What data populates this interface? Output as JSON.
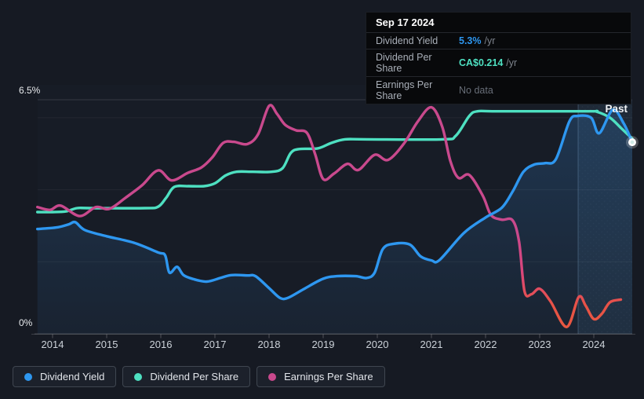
{
  "chart": {
    "past_label": "Past",
    "y_axis": {
      "top_label": "6.5%",
      "bottom_label": "0%"
    },
    "x_ticks": [
      "2014",
      "2015",
      "2016",
      "2017",
      "2018",
      "2019",
      "2020",
      "2021",
      "2022",
      "2023",
      "2024"
    ]
  },
  "tooltip": {
    "date": "Sep 17 2024",
    "rows": [
      {
        "label": "Dividend Yield",
        "value": "5.3%",
        "suffix": "/yr",
        "value_color": "#2e97f0"
      },
      {
        "label": "Dividend Per Share",
        "value": "CA$0.214",
        "suffix": "/yr",
        "value_color": "#4ee0c1"
      },
      {
        "label": "Earnings Per Share",
        "value": "No data",
        "suffix": "",
        "value_color": "#676d77"
      }
    ]
  },
  "legend": [
    {
      "label": "Dividend Yield",
      "color": "#2e97f0"
    },
    {
      "label": "Dividend Per Share",
      "color": "#4ee0c1"
    },
    {
      "label": "Earnings Per Share",
      "color": "#c9498d"
    }
  ],
  "colors": {
    "background": "#161a23",
    "dividend_yield": "#2e97f0",
    "dividend_per_share": "#4ee0c1",
    "earnings_per_share": "#c9498d",
    "earnings_negative_end": "#e85a3f",
    "tooltip_background": "#08090b"
  },
  "chart_data": {
    "type": "line",
    "title": "Dividend history",
    "y_unit": "%",
    "ylim": [
      0,
      6.5
    ],
    "x_range": [
      2013.72,
      2024.75
    ],
    "grid": "horizontal",
    "gridline_values": [
      0,
      2,
      4,
      6,
      6.5
    ],
    "legend_position": "bottom",
    "annotations": [
      "Past"
    ],
    "past_divider_x": 2023.71,
    "series": [
      {
        "name": "Dividend Yield",
        "color": "#2e97f0",
        "fill": true,
        "endpoint_dot": true,
        "points": [
          [
            2013.72,
            2.91
          ],
          [
            2013.9,
            2.93
          ],
          [
            2014.1,
            2.96
          ],
          [
            2014.3,
            3.04
          ],
          [
            2014.42,
            3.1
          ],
          [
            2014.6,
            2.88
          ],
          [
            2015.0,
            2.71
          ],
          [
            2015.5,
            2.53
          ],
          [
            2015.95,
            2.26
          ],
          [
            2016.08,
            2.18
          ],
          [
            2016.16,
            1.7
          ],
          [
            2016.3,
            1.86
          ],
          [
            2016.42,
            1.63
          ],
          [
            2016.6,
            1.52
          ],
          [
            2016.85,
            1.45
          ],
          [
            2017.1,
            1.55
          ],
          [
            2017.3,
            1.63
          ],
          [
            2017.6,
            1.62
          ],
          [
            2017.75,
            1.6
          ],
          [
            2018.0,
            1.27
          ],
          [
            2018.2,
            1.0
          ],
          [
            2018.35,
            1.0
          ],
          [
            2018.65,
            1.25
          ],
          [
            2019.0,
            1.53
          ],
          [
            2019.25,
            1.6
          ],
          [
            2019.6,
            1.6
          ],
          [
            2019.8,
            1.55
          ],
          [
            2019.95,
            1.7
          ],
          [
            2020.1,
            2.35
          ],
          [
            2020.3,
            2.5
          ],
          [
            2020.6,
            2.48
          ],
          [
            2020.8,
            2.15
          ],
          [
            2021.0,
            2.04
          ],
          [
            2021.15,
            2.05
          ],
          [
            2021.6,
            2.8
          ],
          [
            2022.0,
            3.23
          ],
          [
            2022.3,
            3.5
          ],
          [
            2022.5,
            3.95
          ],
          [
            2022.7,
            4.5
          ],
          [
            2022.9,
            4.7
          ],
          [
            2023.1,
            4.74
          ],
          [
            2023.3,
            4.85
          ],
          [
            2023.55,
            5.9
          ],
          [
            2023.7,
            6.05
          ],
          [
            2023.95,
            6.0
          ],
          [
            2024.1,
            5.57
          ],
          [
            2024.35,
            6.22
          ],
          [
            2024.55,
            5.85
          ],
          [
            2024.71,
            5.32
          ]
        ]
      },
      {
        "name": "Dividend Per Share",
        "color": "#4ee0c1",
        "fill": false,
        "points": [
          [
            2013.72,
            3.38
          ],
          [
            2014.0,
            3.38
          ],
          [
            2014.25,
            3.4
          ],
          [
            2014.45,
            3.49
          ],
          [
            2014.7,
            3.49
          ],
          [
            2015.7,
            3.49
          ],
          [
            2015.95,
            3.53
          ],
          [
            2016.1,
            3.78
          ],
          [
            2016.25,
            4.08
          ],
          [
            2016.5,
            4.1
          ],
          [
            2016.8,
            4.1
          ],
          [
            2017.0,
            4.18
          ],
          [
            2017.2,
            4.4
          ],
          [
            2017.4,
            4.5
          ],
          [
            2017.7,
            4.5
          ],
          [
            2018.05,
            4.5
          ],
          [
            2018.25,
            4.6
          ],
          [
            2018.4,
            5.02
          ],
          [
            2018.55,
            5.13
          ],
          [
            2018.9,
            5.15
          ],
          [
            2019.15,
            5.3
          ],
          [
            2019.4,
            5.4
          ],
          [
            2019.8,
            5.4
          ],
          [
            2021.2,
            5.4
          ],
          [
            2021.45,
            5.5
          ],
          [
            2021.7,
            6.05
          ],
          [
            2021.85,
            6.18
          ],
          [
            2022.2,
            6.18
          ],
          [
            2023.9,
            6.18
          ],
          [
            2024.05,
            6.17
          ],
          [
            2024.3,
            6.0
          ],
          [
            2024.5,
            5.72
          ],
          [
            2024.71,
            5.42
          ]
        ]
      },
      {
        "name": "Earnings Per Share",
        "color": "#c9498d",
        "color_end": "#e85a3f",
        "fill": false,
        "points": [
          [
            2013.72,
            3.52
          ],
          [
            2013.95,
            3.44
          ],
          [
            2014.15,
            3.56
          ],
          [
            2014.5,
            3.27
          ],
          [
            2014.8,
            3.52
          ],
          [
            2015.05,
            3.47
          ],
          [
            2015.35,
            3.78
          ],
          [
            2015.65,
            4.12
          ],
          [
            2015.95,
            4.54
          ],
          [
            2016.2,
            4.26
          ],
          [
            2016.5,
            4.47
          ],
          [
            2016.75,
            4.62
          ],
          [
            2016.95,
            4.9
          ],
          [
            2017.15,
            5.3
          ],
          [
            2017.35,
            5.33
          ],
          [
            2017.6,
            5.27
          ],
          [
            2017.8,
            5.55
          ],
          [
            2018.0,
            6.33
          ],
          [
            2018.15,
            6.1
          ],
          [
            2018.3,
            5.8
          ],
          [
            2018.5,
            5.65
          ],
          [
            2018.7,
            5.58
          ],
          [
            2018.85,
            5.0
          ],
          [
            2019.0,
            4.3
          ],
          [
            2019.2,
            4.45
          ],
          [
            2019.45,
            4.72
          ],
          [
            2019.65,
            4.55
          ],
          [
            2019.95,
            4.97
          ],
          [
            2020.2,
            4.83
          ],
          [
            2020.5,
            5.3
          ],
          [
            2020.75,
            5.9
          ],
          [
            2021.0,
            6.29
          ],
          [
            2021.2,
            5.75
          ],
          [
            2021.35,
            4.8
          ],
          [
            2021.5,
            4.33
          ],
          [
            2021.7,
            4.41
          ],
          [
            2021.95,
            3.83
          ],
          [
            2022.1,
            3.3
          ],
          [
            2022.3,
            3.17
          ],
          [
            2022.5,
            3.15
          ],
          [
            2022.62,
            2.55
          ],
          [
            2022.72,
            1.18
          ],
          [
            2022.85,
            1.1
          ],
          [
            2023.0,
            1.25
          ],
          [
            2023.2,
            0.9
          ],
          [
            2023.5,
            0.19
          ],
          [
            2023.72,
            1.02
          ],
          [
            2023.85,
            0.78
          ],
          [
            2024.0,
            0.41
          ],
          [
            2024.15,
            0.56
          ],
          [
            2024.3,
            0.88
          ],
          [
            2024.5,
            0.95
          ]
        ]
      }
    ]
  }
}
